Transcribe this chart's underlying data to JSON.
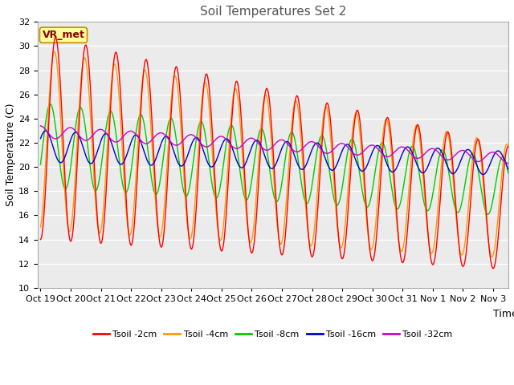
{
  "title": "Soil Temperatures Set 2",
  "xlabel": "Time",
  "ylabel": "Soil Temperature (C)",
  "ylim": [
    10,
    32
  ],
  "yticks": [
    10,
    12,
    14,
    16,
    18,
    20,
    22,
    24,
    26,
    28,
    30,
    32
  ],
  "xtick_labels": [
    "Oct 19",
    "Oct 20",
    "Oct 21",
    "Oct 22",
    "Oct 23",
    "Oct 24",
    "Oct 25",
    "Oct 26",
    "Oct 27",
    "Oct 28",
    "Oct 29",
    "Oct 30",
    "Oct 31",
    "Nov 1",
    "Nov 2",
    "Nov 3"
  ],
  "fig_bg_color": "#ffffff",
  "plot_bg_color": "#ebebeb",
  "line_colors": [
    "#ff0000",
    "#ff9900",
    "#00cc00",
    "#0000cc",
    "#cc00cc"
  ],
  "line_labels": [
    "Tsoil -2cm",
    "Tsoil -4cm",
    "Tsoil -8cm",
    "Tsoil -16cm",
    "Tsoil -32cm"
  ],
  "annotation_text": "VR_met",
  "annotation_bg": "#ffff99",
  "annotation_border": "#cc8800",
  "title_fontsize": 11,
  "label_fontsize": 9,
  "tick_fontsize": 8,
  "legend_fontsize": 8,
  "n_days": 15.5,
  "n_points": 744
}
